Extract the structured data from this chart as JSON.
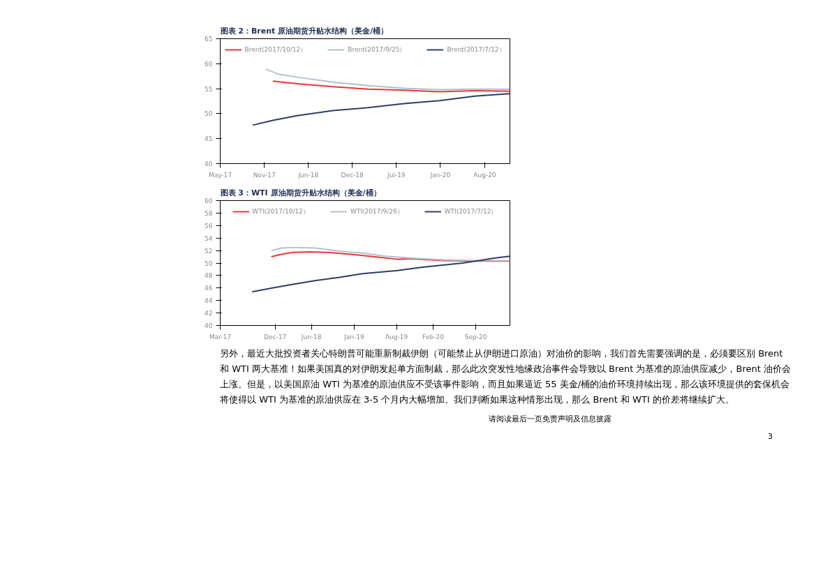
{
  "chart_data": [
    {
      "type": "line",
      "title": "图表 2：Brent 原油期货升贴水结构（美金/桶）",
      "xlim": [
        "2017-05-01",
        "2020-11-22"
      ],
      "ylim": [
        40,
        65
      ],
      "yticks": [
        40,
        45,
        50,
        55,
        60,
        65
      ],
      "xticks": [
        {
          "value": "2017-05-01",
          "label": "May-17"
        },
        {
          "value": "2017-11-15",
          "label": "Nov-17"
        },
        {
          "value": "2018-06-01",
          "label": "Jun-18"
        },
        {
          "value": "2018-12-15",
          "label": "Dec-18"
        },
        {
          "value": "2019-07-01",
          "label": "Jul-19"
        },
        {
          "value": "2020-01-15",
          "label": "Jan-20"
        },
        {
          "value": "2020-08-01",
          "label": "Aug-20"
        }
      ],
      "grid": false,
      "legend": "top",
      "line_style": "solid",
      "marker": "none",
      "series": [
        {
          "name": "Brent(2017/10/12）",
          "color": "#e8363a",
          "x": [
            "2017-12-23",
            "2018-04-12",
            "2018-09-19",
            "2019-02-25",
            "2019-08-04",
            "2020-01-11",
            "2020-06-18",
            "2020-11-20"
          ],
          "values": [
            56.5,
            56.0,
            55.4,
            54.9,
            54.7,
            54.4,
            54.6,
            54.5
          ]
        },
        {
          "name": "Brent(2017/9/25）",
          "color": "#b4bfd1",
          "x": [
            "2017-11-22",
            "2018-01-17",
            "2018-04-12",
            "2018-09-19",
            "2019-02-25",
            "2019-08-04",
            "2020-01-11",
            "2020-06-18",
            "2020-11-20"
          ],
          "values": [
            58.9,
            57.9,
            57.3,
            56.3,
            55.6,
            55.1,
            54.8,
            54.9,
            54.9
          ]
        },
        {
          "name": "Brent(2017/7/12）",
          "color": "#2b3f66",
          "x": [
            "2017-09-24",
            "2017-12-27",
            "2018-04-12",
            "2018-09-19",
            "2019-02-25",
            "2019-08-04",
            "2020-01-11",
            "2020-06-18",
            "2020-11-20"
          ],
          "values": [
            47.7,
            48.7,
            49.6,
            50.6,
            51.2,
            52.0,
            52.6,
            53.5,
            54.0
          ]
        }
      ]
    },
    {
      "type": "line",
      "title": "图表 3：WTI 原油期货升贴水结构（美金/桶）",
      "xlim": [
        "2017-03-15",
        "2021-03-05"
      ],
      "ylim": [
        40,
        60
      ],
      "yticks": [
        40,
        42,
        44,
        46,
        48,
        50,
        52,
        54,
        56,
        58,
        60
      ],
      "xticks": [
        {
          "value": "2017-03-15",
          "label": "Mar-17"
        },
        {
          "value": "2017-12-15",
          "label": "Dec-17"
        },
        {
          "value": "2018-06-15",
          "label": "Jun-18"
        },
        {
          "value": "2019-01-15",
          "label": "Jan-19"
        },
        {
          "value": "2019-08-15",
          "label": "Aug-19"
        },
        {
          "value": "2020-02-15",
          "label": "Feb-20"
        },
        {
          "value": "2020-09-15",
          "label": "Sep-20"
        }
      ],
      "grid": false,
      "legend": "top",
      "line_style": "solid",
      "marker": "none",
      "series": [
        {
          "name": "WTI(2017/10/12）",
          "color": "#e8363a",
          "x": [
            "2017-11-26",
            "2018-01-14",
            "2018-03-14",
            "2018-06-03",
            "2018-09-05",
            "2018-12-30",
            "2019-04-26",
            "2019-08-20",
            "2019-10-18",
            "2020-04-10",
            "2020-10-01",
            "2021-03-05"
          ],
          "values": [
            51.0,
            51.4,
            51.7,
            51.8,
            51.7,
            51.4,
            51.0,
            50.6,
            50.7,
            50.4,
            50.3,
            50.3
          ]
        },
        {
          "name": "WTI(2017/9/26）",
          "color": "#b4bfd1",
          "x": [
            "2017-11-26",
            "2018-01-14",
            "2018-03-25",
            "2018-07-08",
            "2018-11-02",
            "2019-02-26",
            "2019-06-23",
            "2019-10-18",
            "2020-04-10",
            "2020-10-01",
            "2021-03-05"
          ],
          "values": [
            52.0,
            52.4,
            52.5,
            52.4,
            51.9,
            51.6,
            51.1,
            50.8,
            50.5,
            50.4,
            50.4
          ]
        },
        {
          "name": "WTI(2017/7/12）",
          "color": "#2b3f66",
          "x": [
            "2017-08-22",
            "2017-12-01",
            "2018-03-14",
            "2018-07-08",
            "2018-11-02",
            "2019-02-26",
            "2019-08-20",
            "2019-12-15",
            "2020-04-10",
            "2020-07-12",
            "2020-10-01",
            "2020-12-22",
            "2021-03-05"
          ],
          "values": [
            45.4,
            46.0,
            46.6,
            47.2,
            47.7,
            48.3,
            48.8,
            49.3,
            49.7,
            50.0,
            50.4,
            50.8,
            51.1
          ]
        }
      ],
      "annotations": [
        "另外，最近大批投资者关心特朗普可能重新制裁伊朗（可能禁止从伊朗进口原油）对油价的影响，我们首先需要强调的是，必须要区别 Brent 和 WTI 两大基准！如果美国真的对伊朗发起单方面制裁，那么此次突发性地缘政治事件会导致以 Brent 为基准的原油供应减少，Brent 油价会上涨。但是，以美国原油 WTI 为基准的原油供应不受该事件影响，而且如果逼近 55 美金/桶的油价环境持续出现，那么该环境提供的套保机会将使得以 WTI 为基准的原油供应在 3-5 个月内大幅增加。我们判断如果这种情形出现，那么 Brent 和 WTI 的价差将继续扩大。",
        "请阅读最后一页免责声明及信息披露",
        "3"
      ]
    }
  ]
}
